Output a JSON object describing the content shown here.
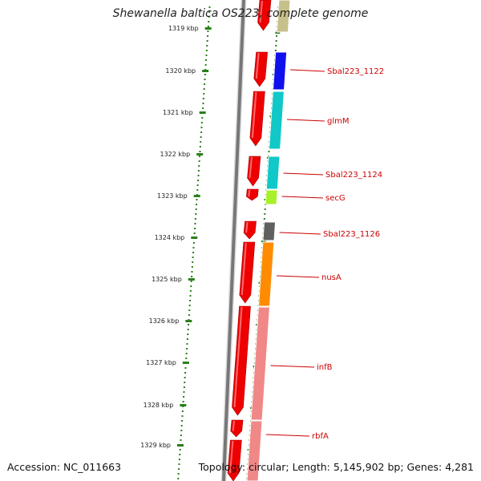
{
  "title": "Shewanella baltica OS223, complete genome",
  "accession": "Accession: NC_011663",
  "topology": "Topology: circular; Length: 5,145,902 bp; Genes: 4,281",
  "colors": {
    "backbone": "#777777",
    "tick": "#2a7f1a",
    "gene_strand": "#ee0000",
    "label": "#cc0000"
  },
  "scale": {
    "unit": "kbp",
    "ticks": [
      "1319 kbp",
      "1320 kbp",
      "1321 kbp",
      "1322 kbp",
      "1323 kbp",
      "1324 kbp",
      "1325 kbp",
      "1326 kbp",
      "1327 kbp",
      "1328 kbp",
      "1329 kbp"
    ]
  },
  "genes": [
    {
      "label": "",
      "color": "#c8c08a"
    },
    {
      "label": "Sbal223_1122",
      "color": "#1010ee"
    },
    {
      "label": "glmM",
      "color": "#10c8c8"
    },
    {
      "label": "Sbal223_1124",
      "color": "#10c8c8"
    },
    {
      "label": "secG",
      "color": "#a8f028"
    },
    {
      "label": "Sbal223_1126",
      "color": "#606060"
    },
    {
      "label": "nusA",
      "color": "#ff8c00"
    },
    {
      "label": "infB",
      "color": "#f08888"
    },
    {
      "label": "rbfA",
      "color": "#f08888"
    }
  ]
}
